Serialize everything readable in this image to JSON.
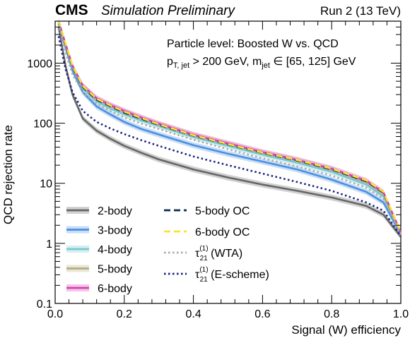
{
  "chart_data": {
    "type": "line",
    "header": {
      "experiment": "CMS",
      "label": "Simulation Preliminary",
      "run": "Run 2 (13 TeV)"
    },
    "annotation": {
      "line1": "Particle level: Boosted W vs. QCD",
      "line2_p": "p",
      "line2_psub": "T, jet",
      "line2_mid": " > 200 GeV,  m",
      "line2_msub": "jet",
      "line2_end": " ∈ [65, 125] GeV"
    },
    "xlabel": "Signal (W) efficiency",
    "ylabel": "QCD rejection rate",
    "xlim": [
      0,
      1
    ],
    "ylim": [
      0.1,
      5000
    ],
    "yscale": "log",
    "x_ticks": [
      0,
      0.2,
      0.4,
      0.6,
      0.8,
      1
    ],
    "x_tick_labels": [
      "0.0",
      "0.2",
      "0.4",
      "0.6",
      "0.8",
      "1.0"
    ],
    "y_ticks": [
      0.1,
      1,
      10,
      100,
      1000
    ],
    "y_tick_labels": [
      "0.1",
      "1",
      "10",
      "100",
      "1000"
    ],
    "grid": false,
    "legend_placement": "bottom-left",
    "series": [
      {
        "name": "2-body",
        "color": "#666666",
        "style": "solid",
        "band": true,
        "x": [
          0.01,
          0.03,
          0.05,
          0.08,
          0.12,
          0.16,
          0.2,
          0.25,
          0.3,
          0.4,
          0.5,
          0.6,
          0.7,
          0.8,
          0.9,
          0.95,
          1.0
        ],
        "y": [
          4000,
          900,
          300,
          120,
          75,
          55,
          42,
          32,
          25,
          17,
          12.5,
          9.5,
          7.5,
          5.8,
          4.2,
          3.0,
          1.3
        ]
      },
      {
        "name": "3-body",
        "color": "#4a90e2",
        "style": "solid",
        "band": true,
        "x": [
          0.01,
          0.03,
          0.05,
          0.08,
          0.12,
          0.16,
          0.2,
          0.25,
          0.3,
          0.4,
          0.5,
          0.6,
          0.7,
          0.8,
          0.9,
          0.95,
          1.0
        ],
        "y": [
          4500,
          1800,
          750,
          330,
          190,
          140,
          105,
          80,
          65,
          43,
          31,
          23,
          17,
          11.5,
          7.2,
          4.8,
          1.4
        ]
      },
      {
        "name": "4-body",
        "color": "#76c8cf",
        "style": "solid",
        "band": true,
        "x": [
          0.01,
          0.03,
          0.05,
          0.08,
          0.12,
          0.16,
          0.2,
          0.25,
          0.3,
          0.4,
          0.5,
          0.6,
          0.7,
          0.8,
          0.9,
          0.95,
          1.0
        ],
        "y": [
          4800,
          2000,
          850,
          380,
          230,
          175,
          140,
          110,
          90,
          59,
          42,
          30,
          22,
          15.5,
          9.5,
          6.0,
          1.5
        ]
      },
      {
        "name": "5-body",
        "color": "#b5ad7e",
        "style": "solid",
        "band": true,
        "x": [
          0.01,
          0.03,
          0.05,
          0.08,
          0.12,
          0.16,
          0.2,
          0.25,
          0.3,
          0.4,
          0.5,
          0.6,
          0.7,
          0.8,
          0.9,
          0.95,
          1.0
        ],
        "y": [
          5000,
          2100,
          900,
          410,
          250,
          195,
          155,
          120,
          95,
          63,
          45,
          32,
          24,
          17,
          10.5,
          6.8,
          1.5
        ]
      },
      {
        "name": "6-body",
        "color": "#d83fb0",
        "style": "solid",
        "band": true,
        "x": [
          0.01,
          0.03,
          0.05,
          0.08,
          0.12,
          0.16,
          0.2,
          0.25,
          0.3,
          0.4,
          0.5,
          0.6,
          0.7,
          0.8,
          0.9,
          0.95,
          1.0
        ],
        "y": [
          5000,
          2100,
          900,
          420,
          260,
          200,
          160,
          124,
          98,
          64,
          46,
          33,
          24.5,
          17.5,
          11,
          7.0,
          1.5
        ]
      },
      {
        "name": "5-body OC",
        "color": "#0d2b4f",
        "style": "dashed",
        "band": false,
        "x": [
          0.01,
          0.03,
          0.05,
          0.08,
          0.12,
          0.16,
          0.2,
          0.25,
          0.3,
          0.4,
          0.5,
          0.6,
          0.7,
          0.8,
          0.9,
          0.95,
          1.0
        ],
        "y": [
          5000,
          2100,
          880,
          400,
          245,
          192,
          150,
          118,
          94,
          62,
          44.5,
          32,
          24,
          17,
          10.8,
          7.0,
          1.5
        ]
      },
      {
        "name": "6-body OC",
        "color": "#ffe033",
        "style": "dashed",
        "band": false,
        "x": [
          0.01,
          0.03,
          0.05,
          0.08,
          0.12,
          0.16,
          0.2,
          0.25,
          0.3,
          0.4,
          0.5,
          0.6,
          0.7,
          0.8,
          0.9,
          0.95,
          1.0
        ],
        "y": [
          5000,
          2150,
          910,
          415,
          255,
          198,
          156,
          122,
          96,
          63,
          45,
          32.5,
          24.5,
          17.5,
          11.2,
          7.2,
          1.5
        ]
      },
      {
        "name": "τ₂₁⁽¹⁾ (WTA)",
        "name_base": "τ",
        "name_sub": "21",
        "name_sup": "(1)",
        "name_tail": " (WTA)",
        "color": "#aaaaaa",
        "style": "dotted",
        "band": false,
        "x": [
          0.01,
          0.03,
          0.05,
          0.08,
          0.12,
          0.16,
          0.2,
          0.25,
          0.3,
          0.4,
          0.5,
          0.6,
          0.7,
          0.8,
          0.9,
          0.95,
          1.0
        ],
        "y": [
          4500,
          1500,
          650,
          330,
          210,
          160,
          125,
          98,
          80,
          53,
          37,
          26,
          19,
          13.5,
          8.5,
          5.5,
          1.4
        ]
      },
      {
        "name": "τ₂₁⁽¹⁾ (E-scheme)",
        "name_base": "τ",
        "name_sub": "21",
        "name_sup": "(1)",
        "name_tail": " (E-scheme)",
        "color": "#1a237e",
        "style": "dotted",
        "band": false,
        "x": [
          0.01,
          0.03,
          0.05,
          0.08,
          0.12,
          0.16,
          0.2,
          0.25,
          0.3,
          0.4,
          0.5,
          0.6,
          0.7,
          0.8,
          0.9,
          0.95,
          1.0
        ],
        "y": [
          2800,
          800,
          330,
          160,
          105,
          82,
          66,
          52,
          42,
          28,
          20,
          14.5,
          10.5,
          7.5,
          4.8,
          3.5,
          1.3
        ]
      }
    ]
  }
}
